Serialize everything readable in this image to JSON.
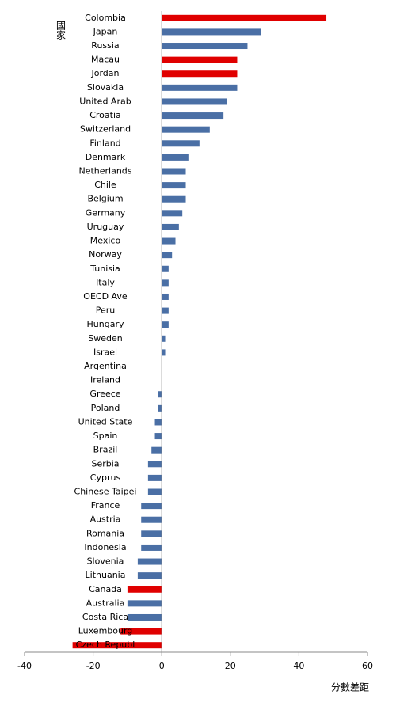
{
  "chart_data": {
    "type": "hbar",
    "y_label": "國家",
    "x_label": "分數差距",
    "categories": [
      "Colombia",
      "Japan",
      "Russia",
      "Macau",
      "Jordan",
      "Slovakia",
      "United Arab",
      "Croatia",
      "Switzerland",
      "Finland",
      "Denmark",
      "Netherlands",
      "Chile",
      "Belgium",
      "Germany",
      "Uruguay",
      "Mexico",
      "Norway",
      "Tunisia",
      "Italy",
      "OECD Ave",
      "Peru",
      "Hungary",
      "Sweden",
      "Israel",
      "Argentina",
      "Ireland",
      "Greece",
      "Poland",
      "United State",
      "Spain",
      "Brazil",
      "Serbia",
      "Cyprus",
      "Chinese Taipei",
      "France",
      "Austria",
      "Romania",
      "Indonesia",
      "Slovenia",
      "Lithuania",
      "Canada",
      "Australia",
      "Costa Rica",
      "Luxembourg",
      "Czech Republ"
    ],
    "values": [
      48,
      29,
      25,
      22,
      22,
      22,
      19,
      18,
      14,
      11,
      8,
      7,
      7,
      7,
      6,
      5,
      4,
      3,
      2,
      2,
      2,
      2,
      2,
      1,
      1,
      0,
      0,
      -1,
      -1,
      -2,
      -2,
      -3,
      -4,
      -4,
      -4,
      -6,
      -6,
      -6,
      -6,
      -7,
      -7,
      -10,
      -10,
      -10,
      -12,
      -26
    ],
    "colors": [
      "#e00000",
      "#4a6fa5",
      "#4a6fa5",
      "#e00000",
      "#e00000",
      "#4a6fa5",
      "#4a6fa5",
      "#4a6fa5",
      "#4a6fa5",
      "#4a6fa5",
      "#4a6fa5",
      "#4a6fa5",
      "#4a6fa5",
      "#4a6fa5",
      "#4a6fa5",
      "#4a6fa5",
      "#4a6fa5",
      "#4a6fa5",
      "#4a6fa5",
      "#4a6fa5",
      "#4a6fa5",
      "#4a6fa5",
      "#4a6fa5",
      "#4a6fa5",
      "#4a6fa5",
      "#4a6fa5",
      "#4a6fa5",
      "#4a6fa5",
      "#4a6fa5",
      "#4a6fa5",
      "#4a6fa5",
      "#4a6fa5",
      "#4a6fa5",
      "#4a6fa5",
      "#4a6fa5",
      "#4a6fa5",
      "#4a6fa5",
      "#4a6fa5",
      "#4a6fa5",
      "#4a6fa5",
      "#4a6fa5",
      "#e00000",
      "#4a6fa5",
      "#4a6fa5",
      "#e00000",
      "#e00000"
    ],
    "xlim": [
      -40,
      60
    ],
    "xticks": [
      -40,
      -20,
      0,
      20,
      40,
      60
    ]
  }
}
